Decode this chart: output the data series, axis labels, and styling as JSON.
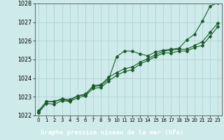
{
  "title": "Graphe pression niveau de la mer (hPa)",
  "bg_color": "#ceeaea",
  "grid_color": "#aed4d4",
  "line_color": "#1a5c2a",
  "label_bg": "#2d6e2d",
  "label_fg": "#ffffff",
  "xlim": [
    -0.5,
    23.5
  ],
  "ylim": [
    1022,
    1028
  ],
  "xticks": [
    0,
    1,
    2,
    3,
    4,
    5,
    6,
    7,
    8,
    9,
    10,
    11,
    12,
    13,
    14,
    15,
    16,
    17,
    18,
    19,
    20,
    21,
    22,
    23
  ],
  "yticks": [
    1022,
    1023,
    1024,
    1025,
    1026,
    1027,
    1028
  ],
  "series1": [
    1022.2,
    1022.75,
    1022.75,
    1022.85,
    1022.8,
    1023.05,
    1023.15,
    1023.55,
    1023.6,
    1023.95,
    1025.15,
    1025.45,
    1025.45,
    1025.3,
    1025.2,
    1025.4,
    1025.5,
    1025.55,
    1025.6,
    1026.05,
    1026.35,
    1027.05,
    1027.85,
    1028.05
  ],
  "series2": [
    1022.25,
    1022.75,
    1022.75,
    1022.9,
    1022.85,
    1023.05,
    1023.1,
    1023.6,
    1023.65,
    1024.05,
    1024.3,
    1024.5,
    1024.6,
    1024.85,
    1025.05,
    1025.25,
    1025.45,
    1025.5,
    1025.55,
    1025.55,
    1025.75,
    1025.95,
    1026.45,
    1026.95
  ],
  "series3": [
    1022.15,
    1022.65,
    1022.6,
    1022.8,
    1022.75,
    1022.95,
    1023.05,
    1023.45,
    1023.5,
    1023.85,
    1024.15,
    1024.35,
    1024.45,
    1024.75,
    1024.95,
    1025.15,
    1025.35,
    1025.35,
    1025.45,
    1025.45,
    1025.65,
    1025.75,
    1026.25,
    1026.75
  ]
}
